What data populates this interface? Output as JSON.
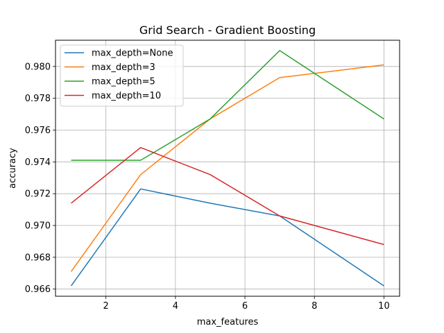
{
  "chart_data": {
    "type": "line",
    "title": "Grid Search - Gradient Boosting",
    "xlabel": "max_features",
    "ylabel": "accuracy",
    "x": [
      1,
      3,
      5,
      7,
      10
    ],
    "xlim": [
      0.55,
      10.45
    ],
    "ylim": [
      0.96555,
      0.98165
    ],
    "xticks": [
      2,
      4,
      6,
      8,
      10
    ],
    "yticks": [
      0.966,
      0.968,
      0.97,
      0.972,
      0.974,
      0.976,
      0.978,
      0.98
    ],
    "xtick_labels": [
      "2",
      "4",
      "6",
      "8",
      "10"
    ],
    "ytick_labels": [
      "0.966",
      "0.968",
      "0.970",
      "0.972",
      "0.974",
      "0.976",
      "0.978",
      "0.980"
    ],
    "grid": true,
    "legend_position": "top-left",
    "series": [
      {
        "name": "max_depth=None",
        "color": "#1f77b4",
        "values": [
          0.9662,
          0.9723,
          0.9714,
          0.9706,
          0.9662
        ]
      },
      {
        "name": "max_depth=3",
        "color": "#ff7f0e",
        "values": [
          0.9671,
          0.9732,
          0.9767,
          0.9793,
          0.9801
        ]
      },
      {
        "name": "max_depth=5",
        "color": "#2ca02c",
        "values": [
          0.9741,
          0.9741,
          0.9767,
          0.981,
          0.9767
        ]
      },
      {
        "name": "max_depth=10",
        "color": "#d62728",
        "values": [
          0.9714,
          0.9749,
          0.9732,
          0.9706,
          0.9688
        ]
      }
    ]
  }
}
